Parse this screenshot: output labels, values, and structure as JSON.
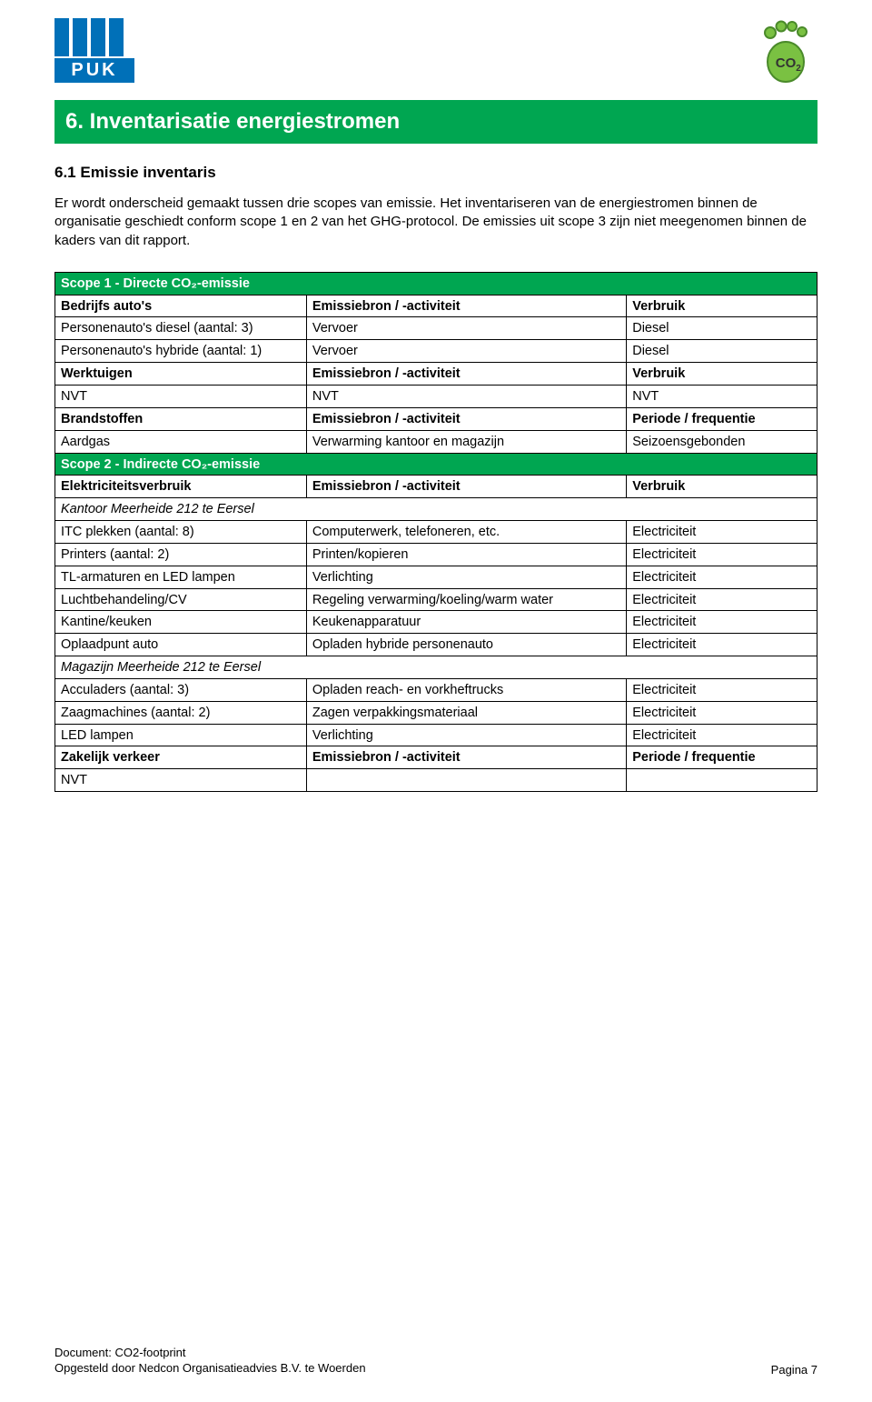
{
  "section_title": "6. Inventarisatie energiestromen",
  "subheading": "6.1 Emissie inventaris",
  "intro": "Er wordt onderscheid gemaakt tussen drie scopes van emissie. Het inventariseren van de energiestromen binnen de organisatie geschiedt conform scope 1 en 2 van het GHG-protocol. De emissies uit scope 3 zijn niet meegenomen binnen de kaders van dit rapport.",
  "scope1_header": "Scope 1 - Directe CO₂-emissie",
  "scope2_header": "Scope 2 - Indirecte CO₂-emissie",
  "table": {
    "rows": [
      {
        "type": "green",
        "c1": "Scope 1 - Directe CO₂-emissie",
        "colspan": 3
      },
      {
        "type": "bold",
        "c1": "Bedrijfs auto's",
        "c2": "Emissiebron / -activiteit",
        "c3": "Verbruik"
      },
      {
        "type": "normal",
        "c1": "Personenauto's diesel (aantal: 3)",
        "c2": "Vervoer",
        "c3": "Diesel"
      },
      {
        "type": "normal",
        "c1": "Personenauto's hybride (aantal: 1)",
        "c2": "Vervoer",
        "c3": "Diesel"
      },
      {
        "type": "bold",
        "c1": "Werktuigen",
        "c2": "Emissiebron / -activiteit",
        "c3": "Verbruik"
      },
      {
        "type": "normal",
        "c1": "NVT",
        "c2": "NVT",
        "c3": "NVT"
      },
      {
        "type": "bold",
        "c1": "Brandstoffen",
        "c2": "Emissiebron / -activiteit",
        "c3": "Periode / frequentie"
      },
      {
        "type": "normal",
        "c1": "Aardgas",
        "c2": "Verwarming kantoor en magazijn",
        "c3": "Seizoensgebonden"
      },
      {
        "type": "green",
        "c1": "Scope 2 - Indirecte CO₂-emissie",
        "colspan": 3
      },
      {
        "type": "bold",
        "c1": "Elektriciteitsverbruik",
        "c2": "Emissiebron / -activiteit",
        "c3": "Verbruik"
      },
      {
        "type": "italic",
        "c1": "Kantoor Meerheide 212 te Eersel",
        "colspan": 3
      },
      {
        "type": "normal",
        "c1": "ITC plekken (aantal: 8)",
        "c2": "Computerwerk, telefoneren, etc.",
        "c3": "Electriciteit"
      },
      {
        "type": "normal",
        "c1": "Printers (aantal: 2)",
        "c2": "Printen/kopieren",
        "c3": "Electriciteit"
      },
      {
        "type": "normal",
        "c1": "TL-armaturen en LED lampen",
        "c2": "Verlichting",
        "c3": "Electriciteit"
      },
      {
        "type": "normal",
        "c1": "Luchtbehandeling/CV",
        "c2": "Regeling verwarming/koeling/warm water",
        "c3": "Electriciteit"
      },
      {
        "type": "normal",
        "c1": "Kantine/keuken",
        "c2": "Keukenapparatuur",
        "c3": "Electriciteit"
      },
      {
        "type": "normal",
        "c1": "Oplaadpunt auto",
        "c2": "Opladen hybride personenauto",
        "c3": "Electriciteit"
      },
      {
        "type": "italic",
        "c1": "Magazijn Meerheide 212 te Eersel",
        "colspan": 3
      },
      {
        "type": "normal",
        "c1": "Acculaders (aantal: 3)",
        "c2": "Opladen reach- en vorkheftrucks",
        "c3": "Electriciteit"
      },
      {
        "type": "normal",
        "c1": "Zaagmachines (aantal: 2)",
        "c2": "Zagen verpakkingsmateriaal",
        "c3": "Electriciteit"
      },
      {
        "type": "normal",
        "c1": "LED lampen",
        "c2": "Verlichting",
        "c3": "Electriciteit"
      },
      {
        "type": "bold",
        "c1": "Zakelijk verkeer",
        "c2": "Emissiebron / -activiteit",
        "c3": "Periode / frequentie"
      },
      {
        "type": "normal",
        "c1": "NVT",
        "c2": "",
        "c3": ""
      }
    ]
  },
  "footer": {
    "doc": "Document: CO2-footprint",
    "author": "Opgesteld door Nedcon Organisatieadvies B.V. te Woerden",
    "page": "Pagina 7"
  },
  "colors": {
    "green": "#00a651",
    "blue": "#0070b8",
    "foot_green": "#7ac142",
    "foot_dark": "#4a8a2a"
  }
}
